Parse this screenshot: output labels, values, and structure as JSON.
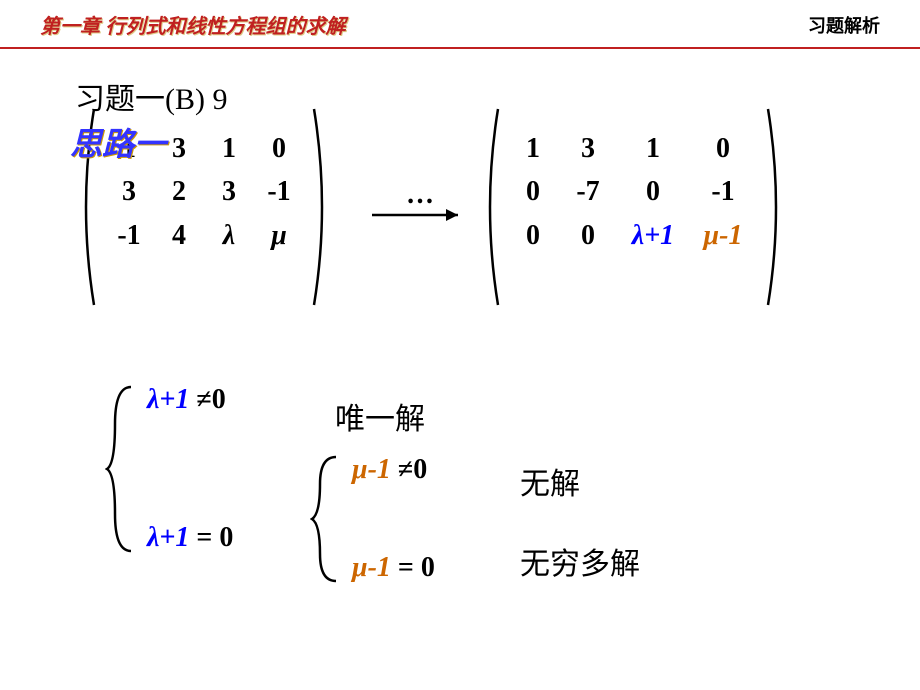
{
  "header": {
    "left": "第一章  行列式和线性方程组的求解",
    "right": "习题解析",
    "left_color": "#c02020",
    "underline_color": "#c02020"
  },
  "problem": {
    "title": "习题一(B) 9",
    "approach_label": "思路一",
    "approach_color": "#3333ff"
  },
  "matrix_left": {
    "bracket_height": 200,
    "rows": [
      [
        {
          "t": "1"
        },
        {
          "t": "3"
        },
        {
          "t": "1"
        },
        {
          "t": "0"
        }
      ],
      [
        {
          "t": "3"
        },
        {
          "t": "2"
        },
        {
          "t": "3"
        },
        {
          "t": "-1"
        }
      ],
      [
        {
          "t": "-1"
        },
        {
          "t": "4"
        },
        {
          "t": "λ",
          "cls": "lambda-plain"
        },
        {
          "t": "μ",
          "cls": "mu-plain"
        }
      ]
    ]
  },
  "arrow": {
    "dots": "…",
    "length": 90
  },
  "matrix_right": {
    "bracket_height": 200,
    "rows": [
      [
        {
          "t": "1"
        },
        {
          "t": "3"
        },
        {
          "t": "1"
        },
        {
          "t": "0"
        }
      ],
      [
        {
          "t": "0"
        },
        {
          "t": "-7"
        },
        {
          "t": "0"
        },
        {
          "t": "-1"
        }
      ],
      [
        {
          "t": "0"
        },
        {
          "t": "0"
        },
        {
          "t": "λ+1",
          "cls": "lambda"
        },
        {
          "t": "μ-1",
          "cls": "mu"
        }
      ]
    ]
  },
  "cases_outer": {
    "brace_height": 170,
    "top": {
      "expr_var": "λ+1",
      "expr_op": " ≠0",
      "var_cls": "lambda",
      "result": "唯一解"
    },
    "bottom": {
      "expr_var": "λ+1",
      "expr_op": " = 0",
      "var_cls": "lambda"
    }
  },
  "cases_inner": {
    "brace_height": 130,
    "top": {
      "expr_var": "μ-1",
      "expr_op": " ≠0",
      "var_cls": "mu",
      "result": "无解"
    },
    "bottom": {
      "expr_var": "μ-1",
      "expr_op": " = 0",
      "var_cls": "mu",
      "result": "无穷多解"
    }
  },
  "colors": {
    "lambda": "#0000ff",
    "mu": "#cc6600",
    "black": "#000000"
  }
}
